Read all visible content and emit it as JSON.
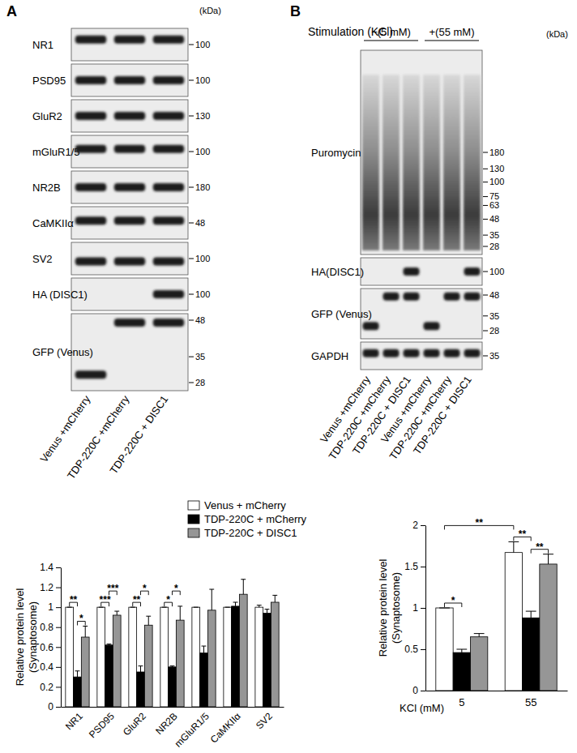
{
  "panel_labels": [
    "A",
    "B"
  ],
  "blots": [
    {
      "unit": "(kDa)",
      "lanes": [
        "Venus +mCherry",
        "TDP-220C +mCherry",
        "TDP-220C + DISC1"
      ],
      "rows": [
        {
          "label": "NR1",
          "markers": [
            100
          ],
          "bands": [
            110,
            110,
            110
          ]
        },
        {
          "label": "PSD95",
          "markers": [
            100
          ],
          "bands": [
            100,
            100,
            100
          ]
        },
        {
          "label": "GluR2",
          "markers": [
            130
          ],
          "bands": [
            130,
            130,
            130
          ]
        },
        {
          "label": "mGluR1/5",
          "markers": [
            100
          ],
          "bands": [
            105,
            105,
            105
          ]
        },
        {
          "label": "NR2B",
          "markers": [
            180
          ],
          "bands": [
            180,
            180,
            180
          ]
        },
        {
          "label": "CaMKIIα",
          "markers": [
            48
          ],
          "bands": [
            50,
            50,
            50
          ]
        },
        {
          "label": "SV2",
          "markers": [
            100
          ],
          "bands": [
            95,
            95,
            95
          ]
        },
        {
          "label": "HA (DISC1)",
          "markers": [
            100
          ],
          "bands": [
            null,
            null,
            100
          ]
        },
        {
          "label": "GFP (Venus)",
          "markers": [
            48,
            35,
            28
          ],
          "bands": [
            30,
            47,
            47
          ]
        }
      ]
    },
    {
      "title": "Stimulation (KCl)",
      "groups": [
        "−(5 mM)",
        "+(55 mM)"
      ],
      "unit": "(kDa)",
      "lanes": [
        "Venus +mCherry",
        "TDP-220C +mCherry",
        "TDP-220C + DISC1",
        "Venus +mCherry",
        "TDP-220C +mCherry",
        "TDP-220C + DISC1"
      ],
      "rows": [
        {
          "label": "Puromycin",
          "markers": [
            180,
            130,
            100,
            75,
            63,
            48,
            35,
            28
          ],
          "bands": null
        },
        {
          "label": "HA(DISC1)",
          "markers": [
            100
          ],
          "bands": [
            null,
            null,
            100,
            null,
            null,
            100
          ]
        },
        {
          "label": "GFP (Venus)",
          "markers": [
            48,
            35,
            28
          ],
          "bands": [
            30,
            47,
            47,
            30,
            47,
            47
          ]
        },
        {
          "label": "GAPDH",
          "markers": [
            35
          ],
          "bands": [
            37,
            37,
            37,
            37,
            37,
            37
          ]
        }
      ]
    }
  ],
  "chart_data": [
    {
      "type": "bar",
      "categories": [
        "NR1",
        "PSD95",
        "GluR2",
        "NR2B",
        "mGluR1/5",
        "CaMKIIα",
        "SV2"
      ],
      "series": [
        {
          "name": "Venus + mCherry",
          "color": "#ffffff",
          "values": [
            1,
            1,
            1,
            1,
            1,
            1,
            1
          ],
          "errors": [
            0,
            0,
            0,
            0,
            0,
            0,
            0.02
          ]
        },
        {
          "name": "TDP-220C + mCherry",
          "color": "#000000",
          "values": [
            0.3,
            0.62,
            0.35,
            0.4,
            0.54,
            1.01,
            0.94
          ],
          "errors": [
            0.06,
            0.01,
            0.06,
            0.01,
            0.07,
            0.04,
            0.04
          ]
        },
        {
          "name": "TDP-220C + DISC1",
          "color": "#969696",
          "values": [
            0.7,
            0.92,
            0.82,
            0.87,
            0.97,
            1.13,
            1.05
          ],
          "errors": [
            0.11,
            0.04,
            0.09,
            0.14,
            0.21,
            0.15,
            0.07
          ]
        }
      ],
      "ylabel": [
        "Relative protein level",
        "(Synaptosome)"
      ],
      "ylim": [
        0,
        1.4
      ],
      "yticks": [
        0,
        0.2,
        0.4,
        0.6,
        0.8,
        1,
        1.2,
        1.4
      ],
      "legend": "top",
      "annotations": [
        {
          "label": "**",
          "from": [
            0,
            0
          ],
          "to": [
            0,
            1
          ]
        },
        {
          "label": "*",
          "from": [
            0,
            1
          ],
          "to": [
            0,
            2
          ]
        },
        {
          "label": "***",
          "from": [
            1,
            0
          ],
          "to": [
            1,
            1
          ]
        },
        {
          "label": "***",
          "from": [
            1,
            1
          ],
          "to": [
            1,
            2
          ]
        },
        {
          "label": "**",
          "from": [
            2,
            0
          ],
          "to": [
            2,
            1
          ]
        },
        {
          "label": "*",
          "from": [
            2,
            1
          ],
          "to": [
            2,
            2
          ]
        },
        {
          "label": "*",
          "from": [
            3,
            0
          ],
          "to": [
            3,
            1
          ]
        },
        {
          "label": "*",
          "from": [
            3,
            1
          ],
          "to": [
            3,
            2
          ]
        }
      ]
    },
    {
      "type": "bar",
      "categories": [
        "5",
        "55"
      ],
      "xlabel": "KCl (mM)",
      "series": [
        {
          "color": "#ffffff",
          "values": [
            1,
            1.67
          ],
          "errors": [
            0,
            0.13
          ]
        },
        {
          "color": "#000000",
          "values": [
            0.46,
            0.88
          ],
          "errors": [
            0.04,
            0.08
          ]
        },
        {
          "color": "#969696",
          "values": [
            0.65,
            1.53
          ],
          "errors": [
            0.04,
            0.12
          ]
        }
      ],
      "ylabel": [
        "Relative protein level",
        "(Synaptosome)"
      ],
      "ylim": [
        0,
        2
      ],
      "yticks": [
        0,
        0.5,
        1,
        1.5,
        2
      ],
      "annotations": [
        {
          "label": "*",
          "from": [
            0,
            0
          ],
          "to": [
            0,
            1
          ]
        },
        {
          "label": "**",
          "from": [
            1,
            0
          ],
          "to": [
            1,
            1
          ]
        },
        {
          "label": "**",
          "from": [
            1,
            1
          ],
          "to": [
            1,
            2
          ]
        },
        {
          "label": "**",
          "from": [
            0,
            0
          ],
          "to": [
            1,
            0
          ]
        }
      ]
    }
  ]
}
